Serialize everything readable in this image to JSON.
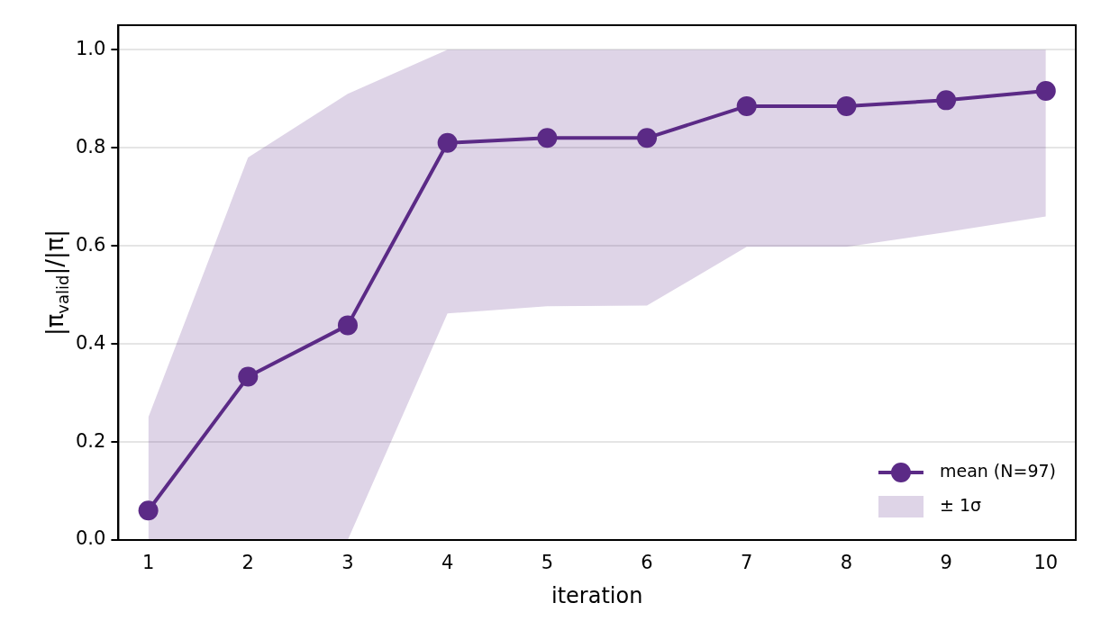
{
  "chart_data": {
    "type": "line",
    "xlabel": "iteration",
    "ylabel": "|π$_{valid}$|/|π|",
    "x": [
      1,
      2,
      3,
      4,
      5,
      6,
      7,
      8,
      9,
      10
    ],
    "series": [
      {
        "name": "mean (N=97)",
        "color": "#5b2a86",
        "values": [
          0.06,
          0.333,
          0.438,
          0.81,
          0.82,
          0.82,
          0.885,
          0.885,
          0.897,
          0.916
        ],
        "lower": [
          0,
          0,
          0,
          0.462,
          0.477,
          0.478,
          0.598,
          0.598,
          0.628,
          0.66
        ],
        "upper": [
          0.25,
          0.78,
          0.91,
          1.0,
          1.0,
          1.0,
          1.0,
          1.0,
          1.0,
          1.0
        ]
      }
    ],
    "annotations": [
      "± 1σ"
    ],
    "xlim": [
      0.7,
      10.3
    ],
    "xticks": [
      1,
      2,
      3,
      4,
      5,
      6,
      7,
      8,
      9,
      10
    ],
    "ylim": [
      0,
      1.05
    ],
    "yticks": [
      {
        "value": 0,
        "label": "0.0"
      },
      0.2,
      0.4,
      0.6,
      0.8,
      {
        "value": 1,
        "label": "1.0"
      }
    ],
    "grid": "y",
    "legend": "bottom right",
    "marker": "circle",
    "line_style": "solid"
  }
}
